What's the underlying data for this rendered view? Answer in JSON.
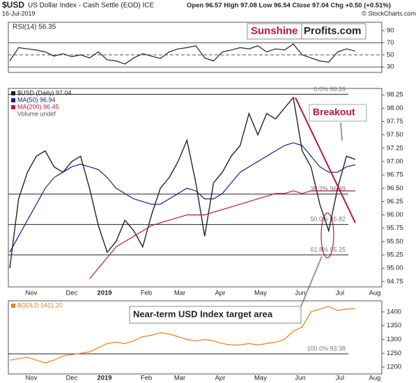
{
  "header": {
    "symbol": "$USD",
    "name": "US Dollar Index - Cash Settle (EOD) ICE",
    "date": "16-Jul-2019",
    "ohlc": "Open 96.57 High 97.08 Low 96.54 Close 97.04 Chg +0.50 (+0.51%)",
    "credit": "© StockCharts.com",
    "brand_a": "Sunshine",
    "brand_b": "Profits.com",
    "breakout": "Breakout",
    "target": "Near-term USD Index target area"
  },
  "x_labels": [
    "Nov",
    "Dec",
    "2019",
    "Feb",
    "Mar",
    "Apr",
    "May",
    "Jun",
    "Jul",
    "Aug"
  ],
  "chart_data": [
    {
      "type": "line",
      "title": "RSI(14) 56.35",
      "ylim": [
        21,
        104
      ],
      "yticks": [
        90,
        70,
        50,
        30
      ],
      "levels": [
        {
          "value": 70
        },
        {
          "value": 50
        },
        {
          "value": 30
        }
      ],
      "series": [
        {
          "name": "RSI(14)",
          "color": "#222222",
          "values": [
            40,
            62,
            60,
            58,
            55,
            48,
            52,
            47,
            50,
            45,
            55,
            42,
            40,
            35,
            45,
            52,
            48,
            44,
            55,
            60,
            62,
            65,
            45,
            40,
            55,
            58,
            62,
            60,
            65,
            55,
            60,
            58,
            68,
            50,
            45,
            40,
            38,
            55,
            60,
            56.35
          ]
        }
      ]
    },
    {
      "type": "line",
      "ylim": [
        94.65,
        98.37
      ],
      "yticks": [
        98.25,
        {
          "value": 98,
          "label": "98.00"
        },
        97.75,
        {
          "value": 97.5,
          "label": "97.50"
        },
        97.25,
        {
          "value": 97,
          "label": "97.00"
        },
        96.75,
        {
          "value": 96.5,
          "label": "96.50"
        },
        96.25,
        {
          "value": 96,
          "label": "96.00"
        },
        95.75,
        {
          "value": 95.5,
          "label": "95.50"
        },
        95.25,
        {
          "value": 95,
          "label": "95.00"
        },
        94.75
      ],
      "levels": [
        {
          "value": 98.26,
          "label": "0.0% 98.26"
        },
        {
          "value": 96.39,
          "label": "38.2% 96.39"
        },
        {
          "value": 95.82,
          "label": "50.0% 95.82"
        },
        {
          "value": 95.25,
          "label": "61.8% 95.25"
        }
      ],
      "trendline": [
        98.2,
        95.85
      ],
      "series": [
        {
          "name": "$USD (Daily) 97.04",
          "color": "#222222",
          "values": [
            95.0,
            96.3,
            96.8,
            97.1,
            97.2,
            96.9,
            96.8,
            97.0,
            97.1,
            96.5,
            95.8,
            95.3,
            95.5,
            95.9,
            95.7,
            95.4,
            96.0,
            96.5,
            96.7,
            97.0,
            97.4,
            96.6,
            95.6,
            96.6,
            96.8,
            97.1,
            97.3,
            97.9,
            97.5,
            97.9,
            97.8,
            98.0,
            98.2,
            97.2,
            96.9,
            96.2,
            95.7,
            96.5,
            97.1,
            97.04
          ]
        },
        {
          "name": "MA(50) 96.94",
          "color": "#1a1a8c",
          "values": [
            95.3,
            95.6,
            95.9,
            96.2,
            96.5,
            96.7,
            96.8,
            96.9,
            96.95,
            96.9,
            96.85,
            96.7,
            96.5,
            96.4,
            96.3,
            96.25,
            96.2,
            96.2,
            96.3,
            96.4,
            96.5,
            96.45,
            96.3,
            96.3,
            96.4,
            96.6,
            96.8,
            96.9,
            97.0,
            97.1,
            97.2,
            97.3,
            97.35,
            97.3,
            97.1,
            96.9,
            96.8,
            96.8,
            96.9,
            96.94
          ]
        },
        {
          "name": "MA(200) 96.45",
          "color": "#c0143c",
          "values": [
            null,
            null,
            null,
            null,
            null,
            null,
            null,
            null,
            null,
            94.8,
            95.0,
            95.2,
            95.4,
            95.5,
            95.6,
            95.7,
            95.8,
            95.85,
            95.9,
            95.95,
            96.0,
            96.0,
            96.0,
            96.05,
            96.1,
            96.15,
            96.2,
            96.25,
            96.3,
            96.35,
            96.4,
            96.4,
            96.45,
            96.4,
            96.45,
            96.45,
            96.45,
            96.45,
            96.45,
            96.45
          ]
        }
      ],
      "legend_extra": "Volume undef"
    },
    {
      "type": "line",
      "ylim": [
        1175,
        1440
      ],
      "yticks": [
        1400,
        1350,
        1300,
        1250,
        1200
      ],
      "levels": [
        {
          "value": 1248,
          "label": "100.0% 93.38"
        }
      ],
      "series": [
        {
          "name": "$GOLD 1411.20",
          "color": "#f07d1a",
          "values": [
            1225,
            1230,
            1235,
            1225,
            1215,
            1225,
            1240,
            1245,
            1250,
            1255,
            1270,
            1285,
            1290,
            1285,
            1295,
            1310,
            1315,
            1325,
            1320,
            1310,
            1300,
            1295,
            1300,
            1295,
            1285,
            1280,
            1280,
            1285,
            1280,
            1285,
            1290,
            1300,
            1330,
            1345,
            1400,
            1410,
            1420,
            1405,
            1410,
            1411.2
          ]
        }
      ]
    }
  ]
}
